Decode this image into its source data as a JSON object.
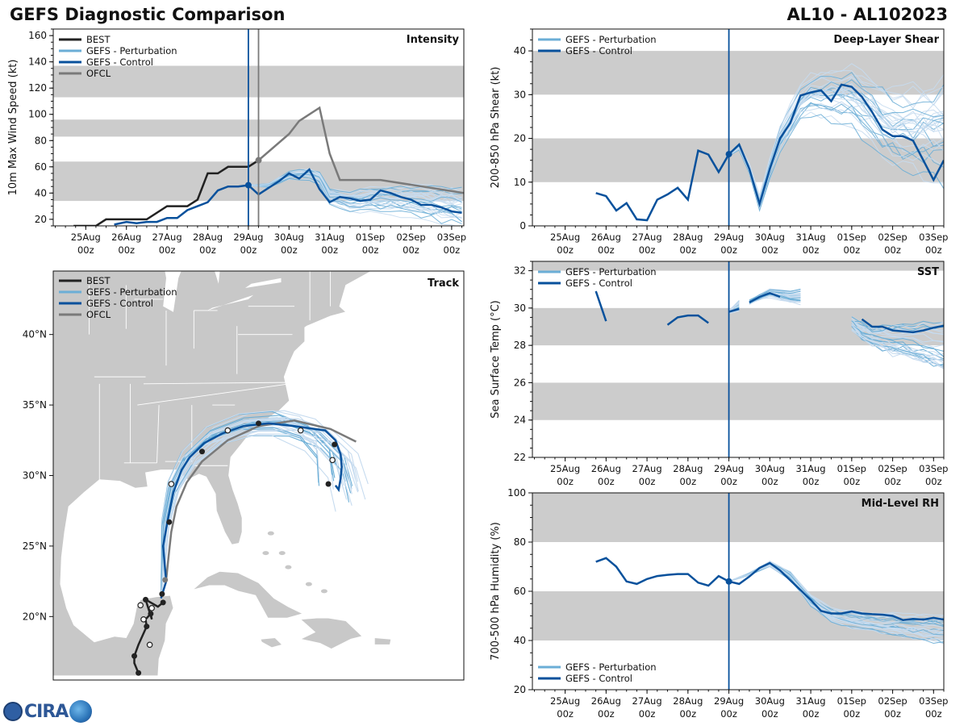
{
  "header": {
    "title": "GEFS Diagnostic Comparison",
    "storm": "AL10 - AL102023",
    "logo_text": "CIRA"
  },
  "colors": {
    "best": "#222222",
    "perturbation": "#6baed6",
    "perturbation_light": "#c6dbef",
    "control": "#08519c",
    "ofcl": "#7a7a7a",
    "band": "#cccccc",
    "land": "#c8c8c8",
    "vline": "#08519c",
    "vline_ofcl": "#7a7a7a"
  },
  "time_ticks": [
    {
      "label": "25Aug 00z",
      "line1": "25Aug",
      "line2": "00z"
    },
    {
      "label": "26Aug 00z",
      "line1": "26Aug",
      "line2": "00z"
    },
    {
      "label": "27Aug 00z",
      "line1": "27Aug",
      "line2": "00z"
    },
    {
      "label": "28Aug 00z",
      "line1": "28Aug",
      "line2": "00z"
    },
    {
      "label": "29Aug 00z",
      "line1": "29Aug",
      "line2": "00z"
    },
    {
      "label": "30Aug 00z",
      "line1": "30Aug",
      "line2": "00z"
    },
    {
      "label": "31Aug 00z",
      "line1": "31Aug",
      "line2": "00z"
    },
    {
      "label": "01Sep 00z",
      "line1": "01Sep",
      "line2": "00z"
    },
    {
      "label": "02Sep 00z",
      "line1": "02Sep",
      "line2": "00z"
    },
    {
      "label": "03Sep 00z",
      "line1": "03Sep",
      "line2": "00z"
    }
  ],
  "chart_data": [
    {
      "id": "intensity",
      "type": "line",
      "title": "Intensity",
      "ylabel": "10m Max Wind Speed (kt)",
      "xlim": [
        -0.8,
        9.3
      ],
      "ylim": [
        15,
        165
      ],
      "yticks": [
        20,
        40,
        60,
        80,
        100,
        120,
        140,
        160
      ],
      "bands": [
        [
          34,
          64
        ],
        [
          83,
          96
        ],
        [
          113,
          137
        ]
      ],
      "init_time": 4.0,
      "ofcl_init_time": 4.25,
      "legend": [
        "BEST",
        "GEFS - Perturbation",
        "GEFS - Control",
        "OFCL"
      ],
      "best": {
        "x": [
          -0.3,
          0.25,
          0.5,
          0.75,
          1.0,
          1.25,
          1.5,
          2.0,
          2.25,
          2.5,
          2.75,
          3.0,
          3.25,
          3.5,
          3.75,
          4.0,
          4.25
        ],
        "y": [
          15,
          15,
          20,
          20,
          20,
          20,
          20,
          30,
          30,
          30,
          35,
          55,
          55,
          60,
          60,
          60,
          65
        ]
      },
      "control": {
        "x": [
          0.7,
          1.0,
          1.25,
          1.5,
          1.75,
          2.0,
          2.25,
          2.5,
          2.75,
          3.0,
          3.25,
          3.5,
          3.75,
          4.0,
          4.25,
          4.5,
          4.75,
          5.0,
          5.25,
          5.5,
          5.75,
          6.0,
          6.25,
          6.5,
          6.75,
          7.0,
          7.25,
          7.5,
          7.75,
          8.0,
          8.25,
          8.5,
          8.75,
          9.0,
          9.25
        ],
        "y": [
          16,
          18,
          17,
          18,
          18,
          21,
          21,
          27,
          30,
          33,
          42,
          45,
          45,
          46,
          39,
          44,
          49,
          55,
          51,
          58,
          43,
          33,
          37,
          36,
          34,
          35,
          42,
          40,
          37,
          35,
          31,
          31,
          29,
          26,
          25
        ]
      },
      "ofcl": {
        "x": [
          4.0,
          4.25,
          5.0,
          5.25,
          5.75,
          6.0,
          6.25,
          7.0,
          7.25,
          9.3
        ],
        "y": [
          60,
          65,
          85,
          95,
          105,
          70,
          50,
          50,
          50,
          40
        ]
      },
      "perturbation_center": {
        "x": [
          4.0,
          4.5,
          5.0,
          5.5,
          5.75,
          6.0,
          6.5,
          7.0,
          7.5,
          8.0,
          8.5,
          9.0,
          9.3
        ],
        "y": [
          46,
          46,
          54,
          55,
          52,
          38,
          35,
          36,
          36,
          36,
          34,
          32,
          31
        ]
      },
      "perturbation_spread": 12,
      "perturbation_members": 30
    },
    {
      "id": "shear",
      "type": "line",
      "title": "Deep-Layer Shear",
      "ylabel": "200-850 hPa Shear (kt)",
      "xlim": [
        -0.8,
        9.25
      ],
      "ylim": [
        0,
        45
      ],
      "yticks": [
        0,
        10,
        20,
        30,
        40
      ],
      "bands": [
        [
          10,
          20
        ],
        [
          30,
          40
        ]
      ],
      "init_time": 4.0,
      "legend": [
        "GEFS - Perturbation",
        "GEFS - Control"
      ],
      "control": {
        "x": [
          0.75,
          1.0,
          1.25,
          1.5,
          1.75,
          2.0,
          2.25,
          2.5,
          2.75,
          3.0,
          3.25,
          3.5,
          3.75,
          4.0,
          4.25,
          4.5,
          4.75,
          5.0,
          5.25,
          5.5,
          5.75,
          6.0,
          6.25,
          6.5,
          6.75,
          7.0,
          7.25,
          7.5,
          7.75,
          8.0,
          8.25,
          8.5,
          8.75,
          9.0,
          9.25
        ],
        "y": [
          7.5,
          6.8,
          3.5,
          5.2,
          1.5,
          1.3,
          6.0,
          7.2,
          8.7,
          6.0,
          17.2,
          16.3,
          12.3,
          16.4,
          18.6,
          13.0,
          5.0,
          13.0,
          20.0,
          23.5,
          29.8,
          30.5,
          31.0,
          28.5,
          32.3,
          31.8,
          29.5,
          26.0,
          22.0,
          20.5,
          20.5,
          19.5,
          15.0,
          10.5,
          15.0
        ]
      },
      "perturbation_center": {
        "x": [
          4.0,
          4.25,
          4.5,
          4.75,
          5.0,
          5.25,
          5.5,
          5.75,
          6.0,
          6.5,
          7.0,
          7.5,
          8.0,
          8.5,
          9.0,
          9.25
        ],
        "y": [
          16,
          18,
          13,
          5,
          13,
          20,
          24,
          28,
          30,
          30,
          30,
          26,
          22,
          22,
          22,
          22
        ]
      },
      "perturbation_spread": 8,
      "perturbation_members": 30
    },
    {
      "id": "sst",
      "type": "line",
      "title": "SST",
      "ylabel": "Sea Surface Temp (°C)",
      "xlim": [
        -0.8,
        9.25
      ],
      "ylim": [
        22,
        32.5
      ],
      "yticks": [
        22,
        24,
        26,
        28,
        30,
        32
      ],
      "bands": [
        [
          24,
          26
        ],
        [
          28,
          30
        ],
        [
          32,
          34
        ]
      ],
      "init_time": 4.0,
      "legend": [
        "GEFS - Perturbation",
        "GEFS - Control"
      ],
      "control_segments": [
        {
          "x": [
            0.75,
            1.0
          ],
          "y": [
            30.9,
            29.3
          ]
        },
        {
          "x": [
            2.5,
            2.75,
            3.0,
            3.25,
            3.5
          ],
          "y": [
            29.1,
            29.5,
            29.6,
            29.6,
            29.2
          ]
        },
        {
          "x": [
            4.0,
            4.25
          ],
          "y": [
            29.8,
            29.95
          ]
        },
        {
          "x": [
            4.5,
            4.75,
            5.0,
            5.25
          ],
          "y": [
            30.3,
            30.6,
            30.8,
            30.6
          ]
        },
        {
          "x": [
            7.25,
            7.5,
            7.75,
            8.0,
            8.25,
            8.5,
            8.75,
            9.0,
            9.25
          ],
          "y": [
            29.4,
            29.0,
            29.0,
            28.8,
            28.75,
            28.7,
            28.8,
            28.95,
            29.05
          ]
        }
      ],
      "perturbation_segments": [
        {
          "x": [
            4.0,
            4.25
          ],
          "y": [
            29.8,
            30.1
          ],
          "spread": 0.2
        },
        {
          "x": [
            4.5,
            4.75,
            5.0,
            5.25,
            5.5,
            5.75
          ],
          "y": [
            30.3,
            30.6,
            30.8,
            30.7,
            30.6,
            30.6
          ],
          "spread": 0.3
        },
        {
          "x": [
            7.0,
            7.25,
            7.5,
            7.75,
            8.0,
            8.25,
            8.5,
            8.75,
            9.0,
            9.25
          ],
          "y": [
            29.2,
            28.8,
            28.5,
            28.4,
            28.3,
            28.3,
            28.2,
            28.1,
            28.0,
            27.9
          ],
          "spread": 1.0
        }
      ],
      "perturbation_members": 28
    },
    {
      "id": "rh",
      "type": "line",
      "title": "Mid-Level RH",
      "ylabel": "700-500 hPa Humidity (%)",
      "xlim": [
        -0.8,
        9.25
      ],
      "ylim": [
        20,
        100
      ],
      "yticks": [
        20,
        40,
        60,
        80,
        100
      ],
      "bands": [
        [
          40,
          60
        ],
        [
          80,
          100
        ]
      ],
      "init_time": 4.0,
      "legend": [
        "GEFS - Perturbation",
        "GEFS - Control"
      ],
      "control": {
        "x": [
          0.75,
          1.0,
          1.25,
          1.5,
          1.75,
          2.0,
          2.25,
          2.5,
          2.75,
          3.0,
          3.25,
          3.5,
          3.75,
          4.0,
          4.25,
          4.5,
          4.75,
          5.0,
          5.25,
          5.5,
          5.75,
          6.0,
          6.25,
          6.5,
          6.75,
          7.0,
          7.25,
          7.5,
          7.75,
          8.0,
          8.25,
          8.5,
          8.75,
          9.0,
          9.25
        ],
        "y": [
          72,
          73.5,
          70,
          64,
          63,
          65,
          66.2,
          66.7,
          67,
          67,
          63.5,
          62.3,
          66.2,
          64,
          63,
          66,
          69.5,
          71.5,
          68.5,
          64.5,
          60.5,
          56.5,
          52,
          51,
          51,
          51.8,
          51,
          50.7,
          50.5,
          50,
          48.3,
          48.8,
          48.5,
          49.2,
          48.5
        ]
      },
      "perturbation_center": {
        "x": [
          4.0,
          4.5,
          5.0,
          5.5,
          6.0,
          6.5,
          7.0,
          7.5,
          8.0,
          8.5,
          9.0,
          9.25
        ],
        "y": [
          64,
          67,
          71,
          66,
          56,
          50,
          48,
          47,
          46,
          45,
          44,
          44
        ]
      },
      "perturbation_spread": 4,
      "perturbation_members": 30
    },
    {
      "id": "track",
      "type": "line",
      "title": "Track",
      "lon_range": [
        -98.5,
        -58.5
      ],
      "lat_range": [
        15.5,
        44.5
      ],
      "lat_ticks": [
        {
          "lat": 20,
          "label": "20°N"
        },
        {
          "lat": 25,
          "label": "25°N"
        },
        {
          "lat": 30,
          "label": "30°N"
        },
        {
          "lat": 35,
          "label": "35°N"
        },
        {
          "lat": 40,
          "label": "40°N"
        }
      ],
      "legend": [
        "BEST",
        "GEFS - Perturbation",
        "GEFS - Control",
        "OFCL"
      ],
      "best": {
        "lon": [
          -90.2,
          -90.6,
          -90.6,
          -90.2,
          -89.4,
          -89.5,
          -89.0,
          -88.9,
          -89.5,
          -88.3,
          -87.8
        ],
        "lat": [
          16.0,
          16.7,
          17.2,
          18.0,
          19.3,
          19.8,
          20.2,
          19.8,
          21.2,
          20.7,
          21.0
        ]
      },
      "best_open_points": [
        {
          "lon": -89.1,
          "lat": 18.0
        },
        {
          "lon": -88.9,
          "lat": 20.6
        },
        {
          "lon": -89.7,
          "lat": 19.8
        },
        {
          "lon": -90.0,
          "lat": 20.8
        }
      ],
      "control": {
        "lon": [
          -88.0,
          -87.5,
          -87.8,
          -87.3,
          -86.8,
          -86.0,
          -85.2,
          -83.8,
          -82.0,
          -80.0,
          -77.5,
          -75.0,
          -72.0,
          -71.0,
          -70.5,
          -70.4,
          -70.5,
          -70.7,
          -71.0
        ],
        "lat": [
          21.3,
          22.5,
          25.0,
          27.0,
          28.8,
          30.4,
          31.3,
          32.3,
          33.0,
          33.5,
          33.7,
          33.5,
          33.2,
          32.5,
          31.5,
          30.6,
          29.8,
          29.0,
          29.3
        ]
      },
      "control_closed_points": [
        {
          "lon": -87.9,
          "lat": 21.6
        },
        {
          "lon": -87.2,
          "lat": 26.7
        },
        {
          "lon": -84.0,
          "lat": 31.7
        },
        {
          "lon": -78.5,
          "lat": 33.7
        },
        {
          "lon": -71.1,
          "lat": 32.2
        },
        {
          "lon": -71.7,
          "lat": 29.4
        }
      ],
      "control_open_points": [
        {
          "lon": -87.0,
          "lat": 29.4
        },
        {
          "lon": -81.5,
          "lat": 33.2
        },
        {
          "lon": -74.4,
          "lat": 33.2
        },
        {
          "lon": -71.3,
          "lat": 31.1
        }
      ],
      "ofcl": {
        "lon": [
          -87.5,
          -87.3,
          -87.0,
          -86.5,
          -85.5,
          -84.0,
          -81.5,
          -78.5,
          -75.0,
          -71.5,
          -69.0
        ],
        "lat": [
          22.6,
          24.0,
          26.0,
          27.8,
          29.5,
          31.0,
          32.5,
          33.5,
          33.9,
          33.3,
          32.4
        ]
      },
      "perturbation_center": {
        "lon": [
          -88.0,
          -87.8,
          -87.6,
          -86.8,
          -85.3,
          -82.8,
          -79.5,
          -76.0,
          -73.0,
          -71.0,
          -70.5
        ],
        "lat": [
          21.3,
          23.5,
          26.5,
          29.2,
          31.2,
          32.8,
          33.6,
          33.7,
          33.0,
          31.5,
          29.5
        ]
      },
      "perturbation_members": 30
    }
  ]
}
